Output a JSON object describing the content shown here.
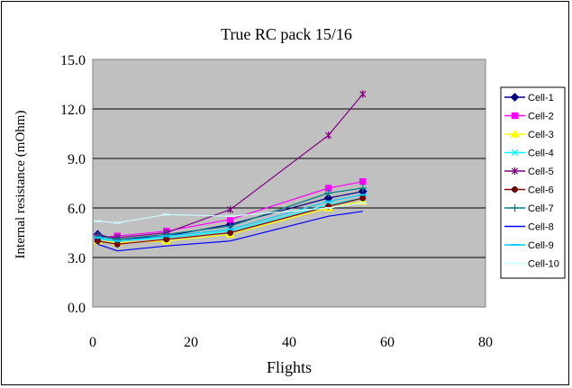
{
  "chart_data": {
    "type": "line",
    "title": "True RC pack 15/16",
    "xlabel": "Flights",
    "ylabel": "Internal resistance (mOhm)",
    "xlim": [
      0,
      80
    ],
    "ylim": [
      0,
      15
    ],
    "xticks": [
      "0",
      "20",
      "40",
      "60",
      "80"
    ],
    "yticks": [
      "0.0",
      "3.0",
      "6.0",
      "9.0",
      "12.0",
      "15.0"
    ],
    "grid": "horizontal",
    "legend_position": "right",
    "plot_background": "#c0c0c0",
    "series": [
      {
        "name": "Cell-1",
        "color": "#000080",
        "marker": "diamond",
        "x": [
          1,
          5,
          15,
          28,
          48,
          55
        ],
        "y": [
          4.4,
          4.1,
          4.3,
          5.0,
          6.6,
          7.0
        ]
      },
      {
        "name": "Cell-2",
        "color": "#ff00ff",
        "marker": "square",
        "x": [
          1,
          5,
          15,
          28,
          48,
          55
        ],
        "y": [
          4.2,
          4.3,
          4.6,
          5.3,
          7.2,
          7.6
        ]
      },
      {
        "name": "Cell-3",
        "color": "#ffff00",
        "marker": "triangle",
        "x": [
          1,
          5,
          15,
          28,
          48,
          55
        ],
        "y": [
          4.0,
          3.9,
          4.0,
          4.4,
          6.0,
          6.4
        ]
      },
      {
        "name": "Cell-4",
        "color": "#00ffff",
        "marker": "x",
        "x": [
          1,
          5,
          15,
          28,
          48,
          55
        ],
        "y": [
          4.1,
          4.0,
          4.2,
          4.6,
          6.2,
          6.6
        ]
      },
      {
        "name": "Cell-5",
        "color": "#800080",
        "marker": "star",
        "x": [
          1,
          5,
          15,
          28,
          48,
          55
        ],
        "y": [
          4.3,
          4.2,
          4.5,
          5.9,
          10.4,
          12.9
        ]
      },
      {
        "name": "Cell-6",
        "color": "#800000",
        "marker": "circle",
        "x": [
          1,
          5,
          15,
          28,
          48,
          55
        ],
        "y": [
          4.0,
          3.8,
          4.1,
          4.5,
          6.1,
          6.6
        ]
      },
      {
        "name": "Cell-7",
        "color": "#008080",
        "marker": "plus",
        "x": [
          1,
          5,
          15,
          28,
          48,
          55
        ],
        "y": [
          4.3,
          4.1,
          4.4,
          4.9,
          6.9,
          7.2
        ]
      },
      {
        "name": "Cell-8",
        "color": "#0000ff",
        "marker": "none",
        "x": [
          1,
          5,
          15,
          28,
          48,
          55
        ],
        "y": [
          3.8,
          3.4,
          3.7,
          4.0,
          5.5,
          5.8
        ]
      },
      {
        "name": "Cell-9",
        "color": "#00ccff",
        "marker": "dash",
        "x": [
          1,
          5,
          15,
          28,
          48,
          55
        ],
        "y": [
          4.2,
          4.0,
          4.3,
          4.7,
          6.4,
          6.8
        ]
      },
      {
        "name": "Cell-10",
        "color": "#ccffff",
        "marker": "dash",
        "x": [
          1,
          5,
          15,
          28,
          48,
          55
        ],
        "y": [
          5.2,
          5.1,
          5.6,
          5.5,
          6.0,
          6.3
        ]
      }
    ]
  }
}
